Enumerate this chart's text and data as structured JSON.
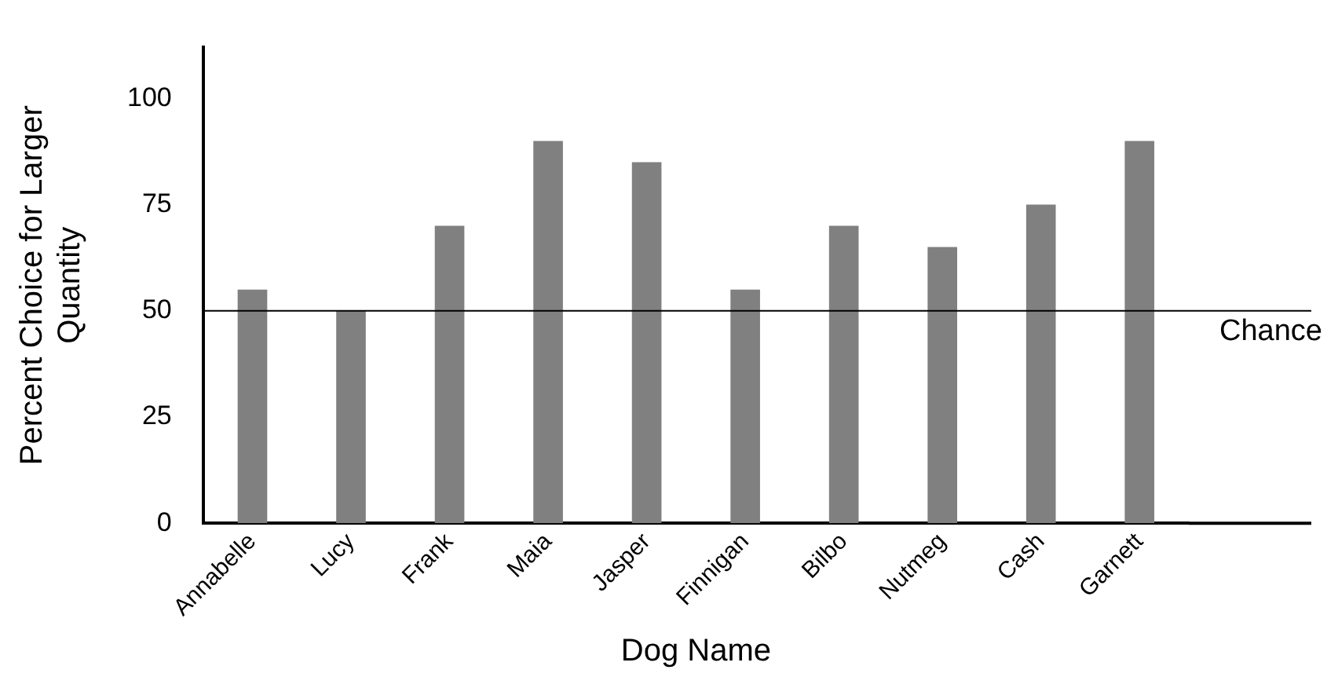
{
  "chart_data": {
    "type": "bar",
    "xlabel": "Dog Name",
    "ylabel": "Percent Choice for Larger Quantity",
    "categories": [
      "Annabelle",
      "Lucy",
      "Frank",
      "Maia",
      "Jasper",
      "Finnigan",
      "Bilbo",
      "Nutmeg",
      "Cash",
      "Garnett"
    ],
    "values": [
      55,
      50,
      70,
      90,
      85,
      55,
      70,
      65,
      75,
      90
    ],
    "color": "#808080",
    "ylim": [
      0,
      112
    ],
    "yticks": [
      0,
      25,
      50,
      75,
      100
    ],
    "grid": false,
    "ref_lines": [
      {
        "axis": "y",
        "value": 50,
        "label": "Chance",
        "color": "#000000"
      }
    ]
  }
}
